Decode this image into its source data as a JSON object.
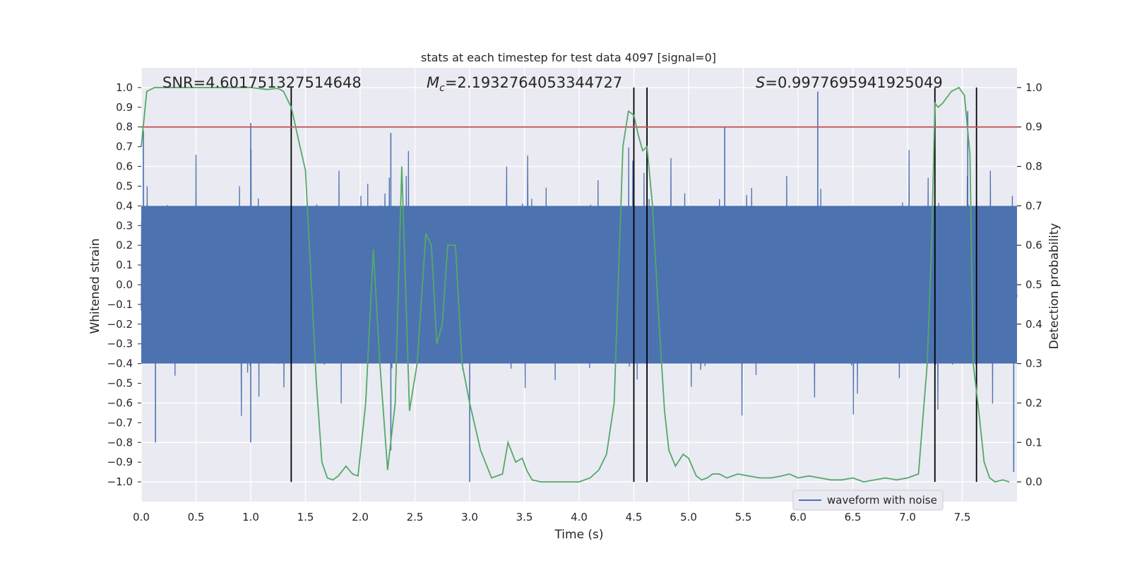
{
  "chart_data": {
    "type": "line",
    "title": "stats at each timestep for test data 4097 [signal=0]",
    "xlabel": "Time (s)",
    "ylabel_left": "Whitened strain",
    "ylabel_right": "Detection probability",
    "xlim": [
      0,
      8
    ],
    "ylim_left": [
      -1.1,
      1.1
    ],
    "ylim_right": [
      -0.05,
      1.05
    ],
    "x_ticks": [
      "0.0",
      "0.5",
      "1.0",
      "1.5",
      "2.0",
      "2.5",
      "3.0",
      "3.5",
      "4.0",
      "4.5",
      "5.0",
      "5.5",
      "6.0",
      "6.5",
      "7.0",
      "7.5"
    ],
    "y_ticks_left": [
      "1.0",
      "0.9",
      "0.8",
      "0.7",
      "0.6",
      "0.5",
      "0.4",
      "0.3",
      "0.2",
      "0.1",
      "0.0",
      "−0.1",
      "−0.2",
      "−0.3",
      "−0.4",
      "−0.5",
      "−0.6",
      "−0.7",
      "−0.8",
      "−0.9",
      "−1.0"
    ],
    "y_ticks_right": [
      "1.0",
      "0.9",
      "0.8",
      "0.7",
      "0.6",
      "0.5",
      "0.4",
      "0.3",
      "0.2",
      "0.1",
      "0.0"
    ],
    "grid": true,
    "legend_position": "lower-right",
    "annotations": {
      "snr": "SNR=4.601751327514648",
      "mc_symbol": "M",
      "mc_sub": "c",
      "mc_value": "=2.1932764053344727",
      "s_symbol": "S",
      "s_value": "=0.9977695941925049"
    },
    "colors": {
      "waveform": "#4c72b0",
      "probability": "#55a868",
      "threshold": "#c44e52",
      "markers": "#000000",
      "background": "#eaeaf2",
      "grid": "#ffffff"
    },
    "series": [
      {
        "name": "waveform with noise",
        "axis": "left",
        "style": "noisy-strain",
        "envelope_typical": 0.4,
        "peaks": [
          [
            0.02,
            0.78
          ],
          [
            0.13,
            -0.8
          ],
          [
            1.0,
            0.82
          ],
          [
            1.0,
            -0.8
          ],
          [
            2.28,
            0.77
          ],
          [
            2.28,
            -0.84
          ],
          [
            3.0,
            -1.0
          ],
          [
            5.33,
            0.8
          ],
          [
            6.18,
            0.98
          ],
          [
            7.55,
            0.88
          ],
          [
            7.97,
            -0.95
          ]
        ]
      },
      {
        "name": "",
        "axis": "right",
        "style": "detection-probability",
        "x": [
          0.0,
          0.05,
          0.12,
          0.25,
          0.5,
          0.75,
          1.0,
          1.15,
          1.25,
          1.3,
          1.37,
          1.45,
          1.5,
          1.55,
          1.6,
          1.65,
          1.7,
          1.75,
          1.8,
          1.87,
          1.93,
          1.98,
          2.05,
          2.12,
          2.18,
          2.25,
          2.32,
          2.38,
          2.45,
          2.52,
          2.6,
          2.65,
          2.7,
          2.75,
          2.8,
          2.87,
          2.93,
          3.0,
          3.1,
          3.2,
          3.3,
          3.35,
          3.42,
          3.48,
          3.52,
          3.57,
          3.65,
          3.72,
          3.8,
          3.9,
          4.0,
          4.1,
          4.18,
          4.25,
          4.32,
          4.4,
          4.45,
          4.5,
          4.54,
          4.58,
          4.62,
          4.67,
          4.72,
          4.78,
          4.82,
          4.88,
          4.95,
          5.0,
          5.07,
          5.12,
          5.17,
          5.22,
          5.28,
          5.35,
          5.4,
          5.45,
          5.55,
          5.65,
          5.75,
          5.85,
          5.92,
          6.0,
          6.1,
          6.2,
          6.3,
          6.4,
          6.5,
          6.6,
          6.7,
          6.8,
          6.9,
          7.0,
          7.1,
          7.18,
          7.22,
          7.25,
          7.28,
          7.32,
          7.4,
          7.47,
          7.52,
          7.57,
          7.6,
          7.65,
          7.7,
          7.75,
          7.8,
          7.87,
          7.93
        ],
        "values": [
          0.85,
          0.99,
          1.0,
          1.0,
          1.0,
          1.0,
          1.0,
          0.995,
          0.998,
          0.99,
          0.95,
          0.85,
          0.79,
          0.52,
          0.25,
          0.05,
          0.01,
          0.005,
          0.015,
          0.04,
          0.02,
          0.015,
          0.2,
          0.59,
          0.3,
          0.03,
          0.2,
          0.8,
          0.18,
          0.3,
          0.63,
          0.6,
          0.35,
          0.4,
          0.6,
          0.6,
          0.3,
          0.2,
          0.08,
          0.01,
          0.02,
          0.1,
          0.05,
          0.06,
          0.03,
          0.005,
          0.0,
          0.0,
          0.0,
          0.0,
          0.0,
          0.01,
          0.03,
          0.07,
          0.2,
          0.85,
          0.94,
          0.93,
          0.88,
          0.84,
          0.85,
          0.7,
          0.45,
          0.18,
          0.08,
          0.04,
          0.07,
          0.06,
          0.015,
          0.005,
          0.01,
          0.02,
          0.02,
          0.01,
          0.015,
          0.02,
          0.015,
          0.01,
          0.01,
          0.015,
          0.02,
          0.01,
          0.015,
          0.01,
          0.005,
          0.005,
          0.01,
          0.0,
          0.005,
          0.01,
          0.005,
          0.01,
          0.02,
          0.3,
          0.6,
          0.96,
          0.95,
          0.96,
          0.99,
          1.0,
          0.98,
          0.83,
          0.3,
          0.18,
          0.05,
          0.01,
          0.0,
          0.005,
          0.0
        ]
      }
    ],
    "threshold_right": 0.9,
    "event_markers_x": [
      1.37,
      4.5,
      4.62,
      7.25,
      7.63
    ]
  }
}
